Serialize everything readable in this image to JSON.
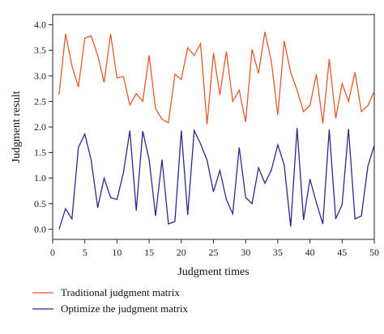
{
  "chart_data": {
    "type": "line",
    "xlabel": "Judgment times",
    "ylabel": "Judgment result",
    "xlim": [
      0,
      50
    ],
    "ylim": [
      -0.2,
      4.2
    ],
    "xticks": [
      0,
      5,
      10,
      15,
      20,
      25,
      30,
      35,
      40,
      45,
      50
    ],
    "yticks": [
      0.0,
      0.5,
      1.0,
      1.5,
      2.0,
      2.5,
      3.0,
      3.5,
      4.0
    ],
    "legend_position": "bottom",
    "x": [
      1,
      2,
      3,
      4,
      5,
      6,
      7,
      8,
      9,
      10,
      11,
      12,
      13,
      14,
      15,
      16,
      17,
      18,
      19,
      20,
      21,
      22,
      23,
      24,
      25,
      26,
      27,
      28,
      29,
      30,
      31,
      32,
      33,
      34,
      35,
      36,
      37,
      38,
      39,
      40,
      41,
      42,
      43,
      44,
      45,
      46,
      47,
      48,
      49,
      50
    ],
    "series": [
      {
        "name": "Traditional judgment matrix",
        "color": "#e05a2b",
        "values": [
          2.63,
          3.82,
          3.2,
          2.78,
          3.74,
          3.78,
          3.4,
          2.87,
          3.82,
          2.96,
          2.99,
          2.43,
          2.65,
          2.5,
          3.4,
          2.36,
          2.15,
          2.08,
          3.03,
          2.93,
          3.55,
          3.4,
          3.63,
          2.05,
          3.45,
          2.63,
          3.48,
          2.5,
          2.72,
          2.1,
          3.52,
          3.05,
          3.86,
          3.28,
          2.23,
          3.68,
          3.07,
          2.72,
          2.3,
          2.42,
          3.03,
          2.07,
          3.33,
          2.17,
          2.85,
          2.5,
          3.07,
          2.3,
          2.42,
          2.7
        ]
      },
      {
        "name": "Optimize the judgment matrix",
        "color": "#2b2a8c",
        "values": [
          0.0,
          0.4,
          0.2,
          1.6,
          1.86,
          1.35,
          0.42,
          1.0,
          0.62,
          0.58,
          1.1,
          1.93,
          0.36,
          1.92,
          1.36,
          0.26,
          1.36,
          0.1,
          0.15,
          1.93,
          0.28,
          1.93,
          1.67,
          1.35,
          0.73,
          1.15,
          0.58,
          0.3,
          1.6,
          0.62,
          0.5,
          1.2,
          0.9,
          1.16,
          1.65,
          1.26,
          0.05,
          1.98,
          0.18,
          0.98,
          0.52,
          0.1,
          1.95,
          0.2,
          0.48,
          1.96,
          0.2,
          0.26,
          1.23,
          1.64
        ]
      }
    ]
  }
}
